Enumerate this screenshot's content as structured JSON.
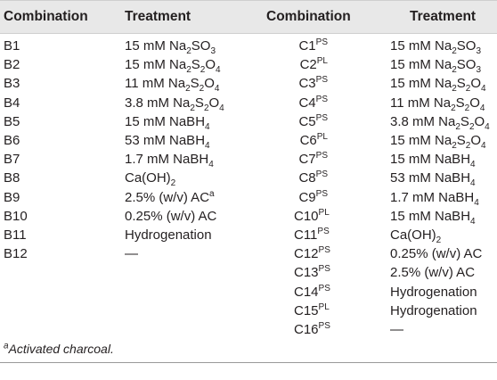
{
  "headers": [
    "Combination",
    "Treatment",
    "Combination",
    "Treatment"
  ],
  "rows": [
    {
      "b": "B1",
      "bt": "15 mM Na<sub>2</sub>SO<sub>3</sub>",
      "c": "C1<sup>PS</sup>",
      "ct": "15 mM Na<sub>2</sub>SO<sub>3</sub>"
    },
    {
      "b": "B2",
      "bt": "15 mM Na<sub>2</sub>S<sub>2</sub>O<sub>4</sub>",
      "c": "C2<sup>PL</sup>",
      "ct": "15 mM Na<sub>2</sub>SO<sub>3</sub>"
    },
    {
      "b": "B3",
      "bt": "11 mM Na<sub>2</sub>S<sub>2</sub>O<sub>4</sub>",
      "c": "C3<sup>PS</sup>",
      "ct": "15 mM Na<sub>2</sub>S<sub>2</sub>O<sub>4</sub>"
    },
    {
      "b": "B4",
      "bt": "3.8 mM Na<sub>2</sub>S<sub>2</sub>O<sub>4</sub>",
      "c": "C4<sup>PS</sup>",
      "ct": "11 mM Na<sub>2</sub>S<sub>2</sub>O<sub>4</sub>"
    },
    {
      "b": "B5",
      "bt": "15 mM NaBH<sub>4</sub>",
      "c": "C5<sup>PS</sup>",
      "ct": "3.8 mM Na<sub>2</sub>S<sub>2</sub>O<sub>4</sub>"
    },
    {
      "b": "B6",
      "bt": "53 mM NaBH<sub>4</sub>",
      "c": "C6<sup>PL</sup>",
      "ct": "15 mM Na<sub>2</sub>S<sub>2</sub>O<sub>4</sub>"
    },
    {
      "b": "B7",
      "bt": "1.7 mM NaBH<sub>4</sub>",
      "c": "C7<sup>PS</sup>",
      "ct": "15 mM NaBH<sub>4</sub>"
    },
    {
      "b": "B8",
      "bt": "Ca(OH)<sub>2</sub>",
      "c": "C8<sup>PS</sup>",
      "ct": "53 mM NaBH<sub>4</sub>"
    },
    {
      "b": "B9",
      "bt": "2.5% (w/v) AC<sup>a</sup>",
      "c": "C9<sup>PS</sup>",
      "ct": "1.7 mM NaBH<sub>4</sub>"
    },
    {
      "b": "B10",
      "bt": "0.25% (w/v) AC",
      "c": "C10<sup>PL</sup>",
      "ct": "15 mM NaBH<sub>4</sub>"
    },
    {
      "b": "B11",
      "bt": "Hydrogenation",
      "c": "C11<sup>PS</sup>",
      "ct": "Ca(OH)<sub>2</sub>"
    },
    {
      "b": "B12",
      "bt": "—",
      "c": "C12<sup>PS</sup>",
      "ct": "0.25% (w/v) AC"
    },
    {
      "b": "",
      "bt": "",
      "c": "C13<sup>PS</sup>",
      "ct": "2.5% (w/v) AC"
    },
    {
      "b": "",
      "bt": "",
      "c": "C14<sup>PS</sup>",
      "ct": "Hydrogenation"
    },
    {
      "b": "",
      "bt": "",
      "c": "C15<sup>PL</sup>",
      "ct": "Hydrogenation"
    },
    {
      "b": "",
      "bt": "",
      "c": "C16<sup>PS</sup>",
      "ct": "—"
    }
  ],
  "footnote": "<sup>a</sup>Activated charcoal."
}
